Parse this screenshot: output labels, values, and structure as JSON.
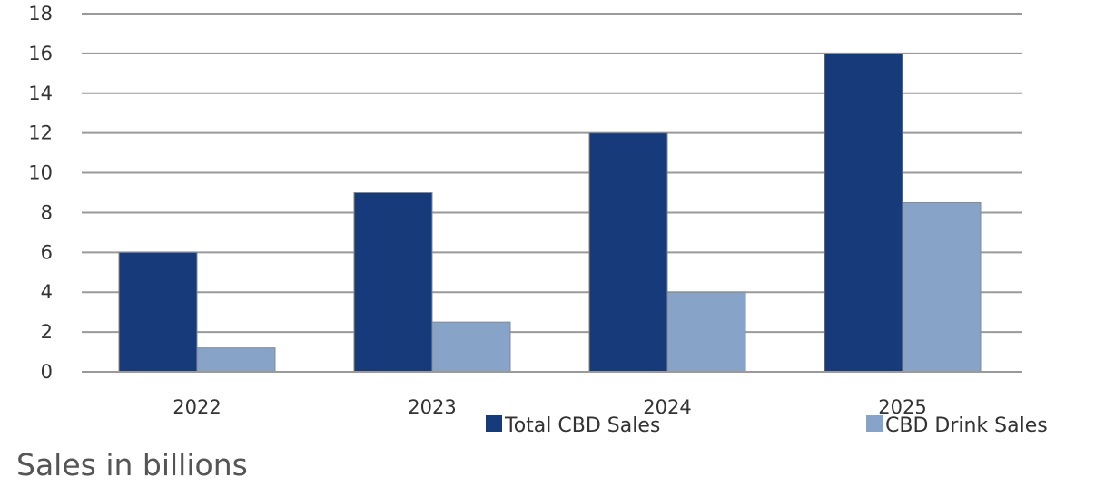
{
  "chart_data": {
    "type": "bar",
    "categories": [
      "2022",
      "2023",
      "2024",
      "2025"
    ],
    "series": [
      {
        "name": "Total CBD Sales",
        "values": [
          6,
          9,
          12,
          16
        ],
        "color": "#173a7a"
      },
      {
        "name": "CBD Drink Sales",
        "values": [
          1.2,
          2.5,
          4,
          8.5
        ],
        "color": "#87a3c8"
      }
    ],
    "ylim": [
      0,
      18
    ],
    "yticks": [
      0,
      2,
      4,
      6,
      8,
      10,
      12,
      14,
      16,
      18
    ],
    "grid": true,
    "legend_position": "bottom-right",
    "caption": "Sales in billions"
  }
}
